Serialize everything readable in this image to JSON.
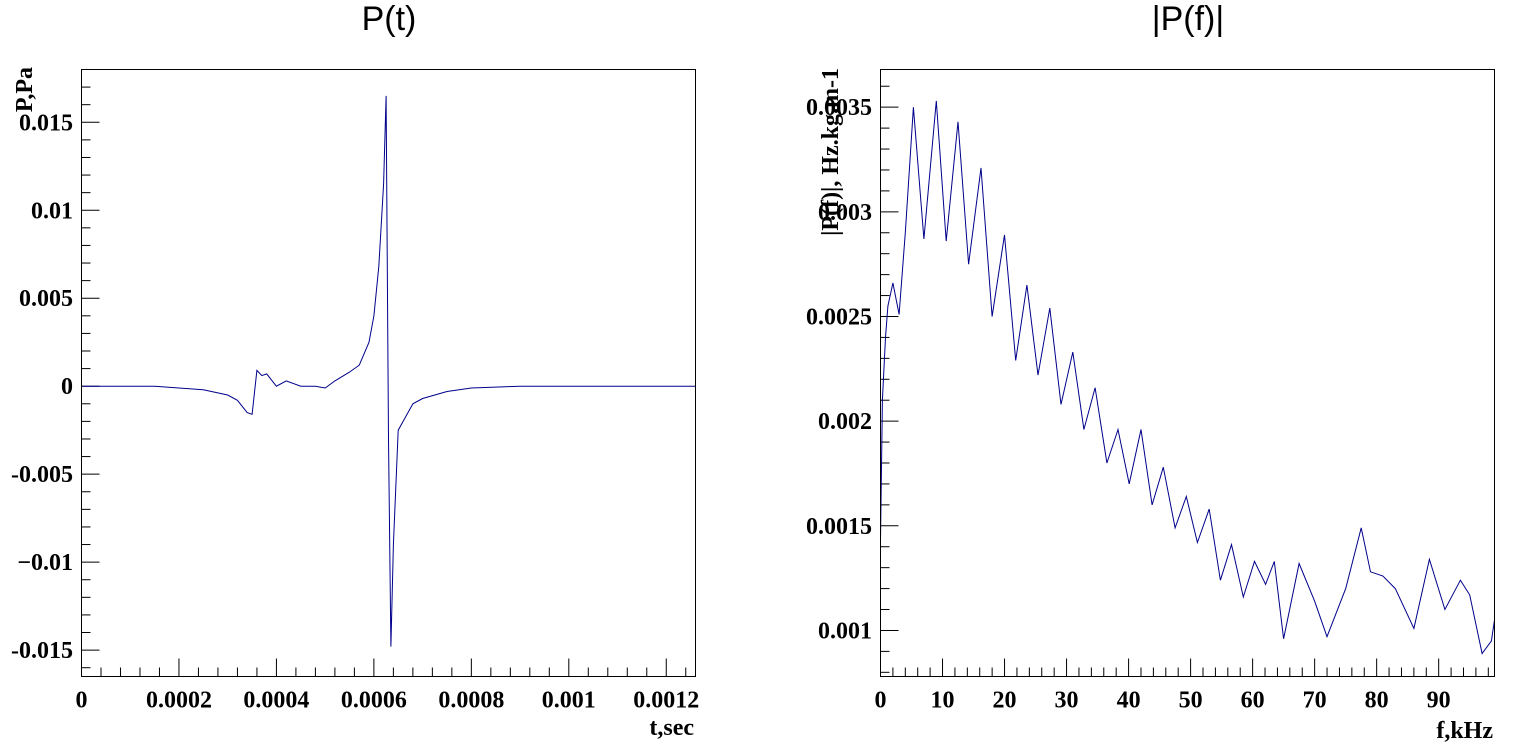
{
  "chart_data": [
    {
      "type": "line",
      "title": "P(t)",
      "xlabel": "t,sec",
      "ylabel": "P,Pa",
      "xlim": [
        0,
        0.00126
      ],
      "ylim": [
        -0.0165,
        0.018
      ],
      "x_tick_values": [
        0,
        0.0002,
        0.0004,
        0.0006,
        0.0008,
        0.001,
        0.0012
      ],
      "x_tick_labels": [
        "0",
        "0.0002",
        "0.0004",
        "0.0006",
        "0.0008",
        "0.001",
        "0.0012"
      ],
      "y_tick_values": [
        -0.015,
        -0.01,
        -0.005,
        0,
        0.005,
        0.01,
        0.015
      ],
      "y_tick_labels": [
        "-0.015",
        "−0.01",
        "-0.005",
        "0",
        "0.005",
        "0.01",
        "0.015"
      ],
      "color": "#00008b",
      "grid": false,
      "series": [
        {
          "x": [
            0,
            5e-05,
            0.0001,
            0.00015,
            0.0002,
            0.00025,
            0.0003,
            0.00032,
            0.00034,
            0.00035,
            0.00036,
            0.00037,
            0.00038,
            0.0004,
            0.00042,
            0.00045,
            0.00048,
            0.0005,
            0.00052,
            0.00055,
            0.00057,
            0.00059,
            0.0006,
            0.00061,
            0.00062,
            0.000625,
            0.00063,
            0.000635,
            0.00064,
            0.00065,
            0.00066,
            0.00068,
            0.0007,
            0.00075,
            0.0008,
            0.0009,
            0.001,
            0.00126
          ],
          "y": [
            0,
            0,
            0,
            0,
            -0.0001,
            -0.0002,
            -0.0005,
            -0.0008,
            -0.0015,
            -0.0016,
            0.0009,
            0.0006,
            0.0007,
            0.0,
            0.0003,
            0.0,
            0.0,
            -0.0001,
            0.0003,
            0.0008,
            0.0012,
            0.0025,
            0.004,
            0.0068,
            0.0115,
            0.0165,
            -0.003,
            -0.0148,
            -0.009,
            -0.0025,
            -0.002,
            -0.001,
            -0.0007,
            -0.0003,
            -0.0001,
            0,
            0,
            0
          ]
        }
      ]
    },
    {
      "type": "line",
      "title": "|P(f)|",
      "xlabel": "f,kHz",
      "ylabel": "|P(f)|, Hz.kg.m-1",
      "xlim": [
        0,
        99
      ],
      "ylim": [
        0.00078,
        0.00368
      ],
      "x_tick_values": [
        0,
        10,
        20,
        30,
        40,
        50,
        60,
        70,
        80,
        90
      ],
      "x_tick_labels": [
        "0",
        "10",
        "20",
        "30",
        "40",
        "50",
        "60",
        "70",
        "80",
        "90"
      ],
      "y_tick_values": [
        0.001,
        0.0015,
        0.002,
        0.0025,
        0.003,
        0.0035
      ],
      "y_tick_labels": [
        "0.001",
        "0.0015",
        "0.002",
        "0.0025",
        "0.003",
        "0.0035"
      ],
      "color": "#00008b",
      "grid": false,
      "series": [
        {
          "x": [
            0,
            0.3,
            0.8,
            1.2,
            2,
            3,
            4,
            5.3,
            7,
            9,
            10.6,
            12.5,
            14.2,
            16.2,
            18,
            20,
            21.8,
            23.6,
            25.4,
            27.3,
            29.1,
            31,
            32.8,
            34.6,
            36.5,
            38.3,
            40.1,
            42,
            43.8,
            45.6,
            47.5,
            49.3,
            51.1,
            53,
            54.8,
            56.6,
            58.5,
            60.3,
            62.1,
            63.5,
            65,
            67.5,
            70,
            72,
            75,
            77.5,
            79,
            81,
            83,
            86,
            88.5,
            91,
            93.5,
            95,
            97,
            98.5,
            99
          ],
          "y": [
            0.00143,
            0.0021,
            0.0024,
            0.00255,
            0.00266,
            0.00251,
            0.0029,
            0.0035,
            0.00287,
            0.00353,
            0.00286,
            0.00343,
            0.00275,
            0.00321,
            0.0025,
            0.00289,
            0.00229,
            0.00265,
            0.00222,
            0.00254,
            0.00208,
            0.00233,
            0.00196,
            0.00216,
            0.0018,
            0.00196,
            0.0017,
            0.00196,
            0.0016,
            0.00178,
            0.00149,
            0.00164,
            0.00142,
            0.00158,
            0.00124,
            0.00141,
            0.00116,
            0.00133,
            0.00122,
            0.00133,
            0.00096,
            0.00132,
            0.00114,
            0.00097,
            0.0012,
            0.00149,
            0.00128,
            0.00126,
            0.0012,
            0.00101,
            0.00134,
            0.0011,
            0.00124,
            0.00117,
            0.00089,
            0.00095,
            0.00105
          ]
        }
      ]
    }
  ]
}
